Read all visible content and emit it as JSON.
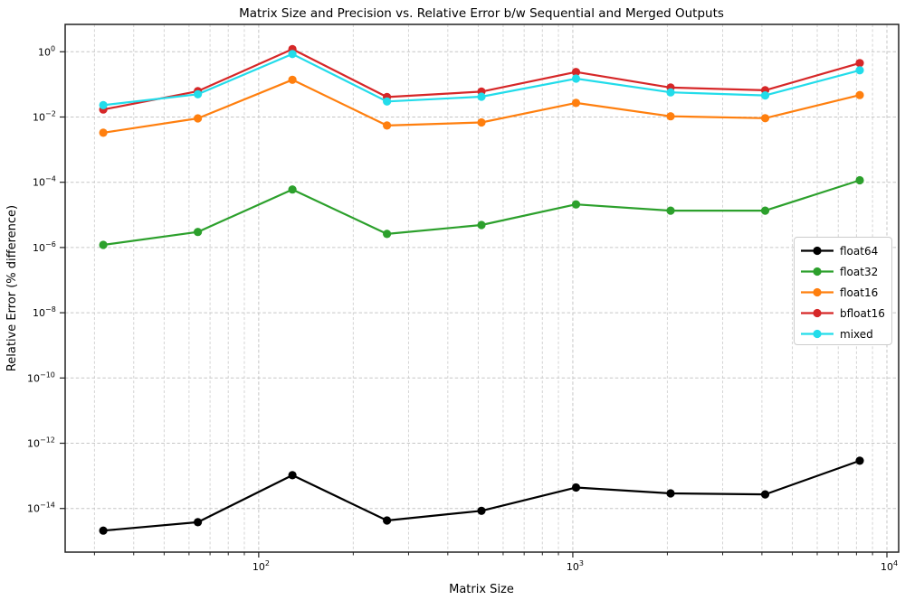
{
  "figure": {
    "background": "#ffffff",
    "spine_color": "#222222",
    "grid_major_color": "#c6c6c6",
    "grid_minor_color": "#d4d4d4"
  },
  "chart_data": {
    "type": "line",
    "title": "Matrix Size and Precision vs. Relative Error b/w Sequential and Merged Outputs",
    "xlabel": "Matrix Size",
    "ylabel": "Relative Error (% difference)",
    "x_scale": "log",
    "y_scale": "log",
    "grid": "both-major-and-minor, dashed",
    "legend_position": "center-right",
    "x": [
      32,
      64,
      128,
      256,
      512,
      1024,
      2048,
      4096,
      8192
    ],
    "series": [
      {
        "name": "float64",
        "color": "#000000",
        "values": [
          2.1e-15,
          3.8e-15,
          1.05e-13,
          4.3e-15,
          8.5e-15,
          4.4e-14,
          2.9e-14,
          2.7e-14,
          2.9e-13
        ]
      },
      {
        "name": "float32",
        "color": "#2ca02c",
        "values": [
          1.2e-06,
          3e-06,
          6e-05,
          2.6e-06,
          4.9e-06,
          2.1e-05,
          1.35e-05,
          1.35e-05,
          0.000115
        ]
      },
      {
        "name": "float16",
        "color": "#ff7f0e",
        "values": [
          0.0033,
          0.0091,
          0.138,
          0.0055,
          0.0068,
          0.027,
          0.0105,
          0.0092,
          0.047
        ]
      },
      {
        "name": "bfloat16",
        "color": "#d62728",
        "values": [
          0.017,
          0.062,
          1.2,
          0.041,
          0.06,
          0.24,
          0.08,
          0.066,
          0.45
        ]
      },
      {
        "name": "mixed",
        "color": "#22dcea",
        "values": [
          0.023,
          0.05,
          0.85,
          0.03,
          0.042,
          0.15,
          0.057,
          0.046,
          0.27
        ]
      }
    ],
    "xlim": [
      24.2,
      10900
    ],
    "ylim": [
      4.6e-16,
      6.9
    ],
    "x_ticks": [
      {
        "value": 100,
        "base": "10",
        "exp": "2"
      },
      {
        "value": 1000,
        "base": "10",
        "exp": "3"
      },
      {
        "value": 10000,
        "base": "10",
        "exp": "4"
      }
    ],
    "y_ticks": [
      {
        "value": 1,
        "base": "10",
        "exp": "0"
      },
      {
        "value": 0.01,
        "base": "10",
        "exp": "−2"
      },
      {
        "value": 0.0001,
        "base": "10",
        "exp": "−4"
      },
      {
        "value": 1e-06,
        "base": "10",
        "exp": "−6"
      },
      {
        "value": 1e-08,
        "base": "10",
        "exp": "−8"
      },
      {
        "value": 1e-10,
        "base": "10",
        "exp": "−10"
      },
      {
        "value": 1e-12,
        "base": "10",
        "exp": "−12"
      },
      {
        "value": 1e-14,
        "base": "10",
        "exp": "−14"
      }
    ]
  }
}
